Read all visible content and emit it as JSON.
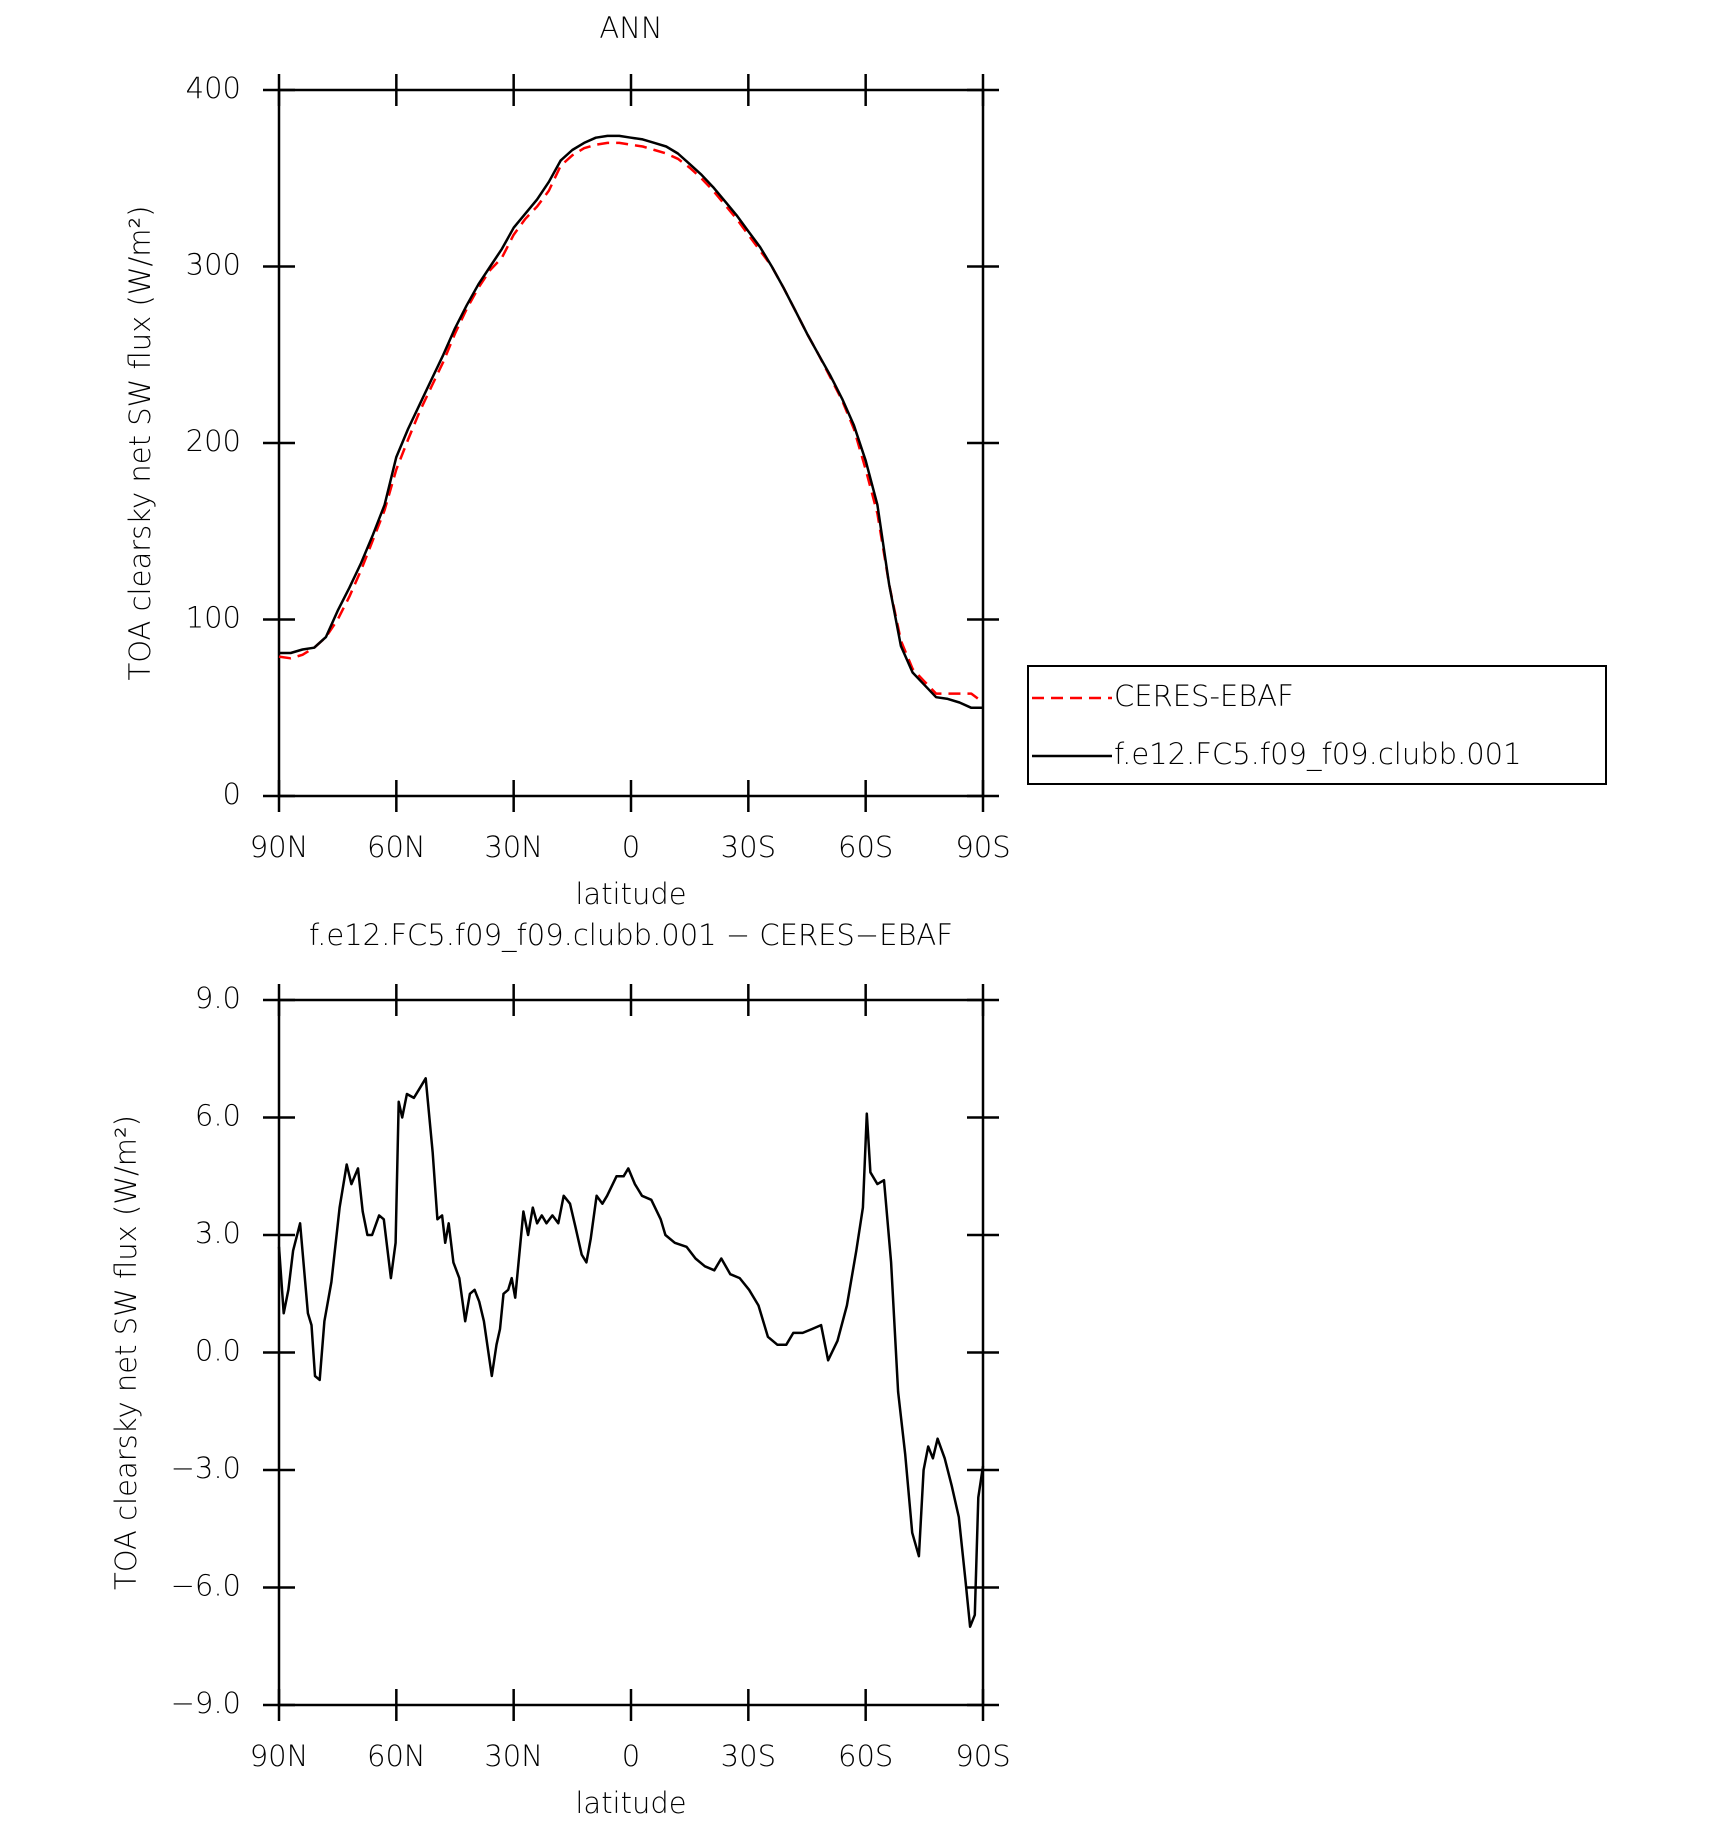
{
  "chart_data": [
    {
      "type": "line",
      "title": "ANN",
      "xlabel": "latitude",
      "ylabel": "TOA clearsky net SW flux (W/m²)",
      "xlim": [
        90,
        -90
      ],
      "xticks": [
        {
          "value": 90,
          "label": "90N"
        },
        {
          "value": 60,
          "label": "60N"
        },
        {
          "value": 30,
          "label": "30N"
        },
        0,
        {
          "value": -30,
          "label": "30S"
        },
        {
          "value": -60,
          "label": "60S"
        },
        {
          "value": -90,
          "label": "90S"
        }
      ],
      "ylim": [
        0,
        400
      ],
      "yticks": [
        0,
        100,
        200,
        300,
        400
      ],
      "legend": "right",
      "x": [
        90,
        87,
        84,
        81,
        78,
        75,
        72,
        69,
        66,
        63,
        60,
        57,
        54,
        51,
        48,
        45,
        42,
        39,
        36,
        33,
        30,
        27,
        24,
        21,
        18,
        15,
        12,
        9,
        6,
        3,
        0,
        -3,
        -6,
        -9,
        -12,
        -15,
        -18,
        -21,
        -24,
        -27,
        -30,
        -33,
        -36,
        -39,
        -42,
        -45,
        -48,
        -51,
        -54,
        -57,
        -60,
        -63,
        -66,
        -69,
        -72,
        -75,
        -78,
        -81,
        -84,
        -87,
        -90
      ],
      "series": [
        {
          "name": "CERES-EBAF",
          "color": "#ff0000",
          "line_style": "dashed",
          "values": [
            79,
            78,
            80,
            84,
            90,
            100,
            113,
            128,
            145,
            162,
            185,
            202,
            218,
            232,
            246,
            262,
            276,
            288,
            298,
            305,
            318,
            327,
            334,
            343,
            357,
            363,
            367,
            369,
            370,
            370,
            369,
            368,
            366,
            364,
            361,
            356,
            350,
            343,
            335,
            327,
            318,
            309,
            300,
            288,
            275,
            262,
            250,
            237,
            224,
            208,
            185,
            160,
            120,
            88,
            72,
            65,
            58,
            58,
            58,
            58,
            53
          ]
        },
        {
          "name": "f.e12.FC5.f09_f09.clubb.001",
          "color": "#000000",
          "line_style": "solid",
          "values": [
            81,
            81,
            83,
            84,
            90,
            105,
            118,
            132,
            148,
            165,
            192,
            208,
            222,
            236,
            250,
            265,
            278,
            290,
            300,
            310,
            322,
            330,
            338,
            348,
            360,
            366,
            370,
            373,
            374,
            374,
            373,
            372,
            370,
            368,
            364,
            358,
            352,
            345,
            337,
            329,
            320,
            311,
            300,
            288,
            275,
            262,
            250,
            238,
            225,
            210,
            190,
            165,
            120,
            85,
            70,
            63,
            56,
            55,
            53,
            50,
            50
          ]
        }
      ]
    },
    {
      "type": "line",
      "title": "f.e12.FC5.f09_f09.clubb.001 − CERES−EBAF",
      "xlabel": "latitude",
      "ylabel": "TOA clearsky net SW flux (W/m²)",
      "xlim": [
        90,
        -90
      ],
      "xticks": [
        {
          "value": 90,
          "label": "90N"
        },
        {
          "value": 60,
          "label": "60N"
        },
        {
          "value": 30,
          "label": "30N"
        },
        0,
        {
          "value": -30,
          "label": "30S"
        },
        {
          "value": -60,
          "label": "60S"
        },
        {
          "value": -90,
          "label": "90S"
        }
      ],
      "ylim": [
        -9,
        9
      ],
      "yticks": [
        {
          "value": -9,
          "label": "−9.0"
        },
        {
          "value": -6,
          "label": "−6.0"
        },
        {
          "value": -3,
          "label": "−3.0"
        },
        {
          "value": 0,
          "label": "0.0"
        },
        {
          "value": 3,
          "label": "3.0"
        },
        {
          "value": 6,
          "label": "6.0"
        },
        {
          "value": 9,
          "label": "9.0"
        }
      ],
      "x": [
        90,
        88.8,
        87.6,
        86.4,
        84.6,
        82.6,
        81.7,
        80.8,
        79.6,
        78.4,
        76.6,
        74.5,
        72.7,
        71.5,
        69.8,
        68.6,
        67.4,
        66.2,
        64.4,
        63.2,
        61.4,
        60.2,
        59.4,
        58.5,
        57.3,
        55.5,
        53.7,
        52.5,
        50.7,
        49.5,
        48.3,
        47.5,
        46.6,
        45.4,
        43.9,
        42.4,
        41.2,
        40.0,
        38.8,
        37.6,
        35.6,
        34.4,
        33.5,
        32.6,
        31.4,
        30.5,
        29.6,
        27.5,
        26.3,
        25.1,
        24.0,
        22.8,
        21.6,
        20.1,
        18.6,
        17.2,
        15.6,
        14.2,
        12.6,
        11.4,
        10.3,
        8.8,
        7.3,
        6.1,
        3.7,
        1.9,
        0.7,
        -1.0,
        -2.8,
        -5.2,
        -7.6,
        -8.8,
        -11.2,
        -14.2,
        -16.5,
        -18.9,
        -21.3,
        -23.1,
        -25.4,
        -27.8,
        -30.2,
        -32.6,
        -35.0,
        -37.4,
        -39.7,
        -41.5,
        -43.9,
        -46.3,
        -48.6,
        -50.4,
        -52.8,
        -55.2,
        -57.6,
        -59.3,
        -60.3,
        -61.2,
        -63.0,
        -64.7,
        -66.5,
        -68.3,
        -70.1,
        -71.9,
        -73.6,
        -74.8,
        -76.0,
        -77.2,
        -78.4,
        -80.2,
        -82.0,
        -83.8,
        -85.5,
        -86.7,
        -87.9,
        -88.8,
        -90
      ],
      "series": [
        {
          "color": "#000000",
          "line_style": "solid",
          "values": [
            2.7,
            1.0,
            1.6,
            2.6,
            3.3,
            1.0,
            0.7,
            -0.6,
            -0.7,
            0.8,
            1.8,
            3.7,
            4.8,
            4.3,
            4.7,
            3.6,
            3.0,
            3.0,
            3.5,
            3.4,
            1.9,
            2.8,
            6.4,
            6.0,
            6.6,
            6.5,
            6.8,
            7.0,
            5.1,
            3.4,
            3.5,
            2.8,
            3.3,
            2.3,
            1.9,
            0.8,
            1.5,
            1.6,
            1.3,
            0.8,
            -0.6,
            0.2,
            0.6,
            1.5,
            1.6,
            1.9,
            1.4,
            3.6,
            3.0,
            3.7,
            3.3,
            3.5,
            3.3,
            3.5,
            3.3,
            4.0,
            3.8,
            3.2,
            2.5,
            2.3,
            2.9,
            4.0,
            3.8,
            4.0,
            4.5,
            4.5,
            4.7,
            4.3,
            4.0,
            3.9,
            3.4,
            3.0,
            2.8,
            2.7,
            2.4,
            2.2,
            2.1,
            2.4,
            2.0,
            1.9,
            1.6,
            1.2,
            0.4,
            0.2,
            0.2,
            0.5,
            0.5,
            0.6,
            0.7,
            -0.2,
            0.3,
            1.2,
            2.6,
            3.7,
            6.1,
            4.6,
            4.3,
            4.4,
            2.3,
            -1.0,
            -2.6,
            -4.6,
            -5.2,
            -3.0,
            -2.4,
            -2.7,
            -2.2,
            -2.7,
            -3.4,
            -4.2,
            -5.8,
            -7.0,
            -6.7,
            -3.7,
            -2.9
          ]
        }
      ]
    }
  ]
}
